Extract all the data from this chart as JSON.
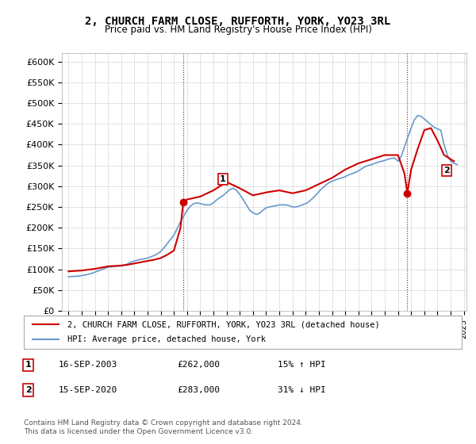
{
  "title": "2, CHURCH FARM CLOSE, RUFFORTH, YORK, YO23 3RL",
  "subtitle": "Price paid vs. HM Land Registry's House Price Index (HPI)",
  "ylabel_ticks": [
    "£0",
    "£50K",
    "£100K",
    "£150K",
    "£200K",
    "£250K",
    "£300K",
    "£350K",
    "£400K",
    "£450K",
    "£500K",
    "£550K",
    "£600K"
  ],
  "ylim": [
    0,
    620000
  ],
  "ytick_vals": [
    0,
    50000,
    100000,
    150000,
    200000,
    250000,
    300000,
    350000,
    400000,
    450000,
    500000,
    550000,
    600000
  ],
  "sale1_date_x": 2003.71,
  "sale1_price": 262000,
  "sale2_date_x": 2020.71,
  "sale2_price": 283000,
  "legend_line1": "2, CHURCH FARM CLOSE, RUFFORTH, YORK, YO23 3RL (detached house)",
  "legend_line2": "HPI: Average price, detached house, York",
  "table_row1": [
    "1",
    "16-SEP-2003",
    "£262,000",
    "15% ↑ HPI"
  ],
  "table_row2": [
    "2",
    "15-SEP-2020",
    "£283,000",
    "31% ↓ HPI"
  ],
  "footnote": "Contains HM Land Registry data © Crown copyright and database right 2024.\nThis data is licensed under the Open Government Licence v3.0.",
  "sale_color": "#cc0000",
  "hpi_color": "#6699cc",
  "vline_color": "#cc0000",
  "background_color": "#ffffff",
  "hpi_data": {
    "years": [
      1995,
      1995.25,
      1995.5,
      1995.75,
      1996,
      1996.25,
      1996.5,
      1996.75,
      1997,
      1997.25,
      1997.5,
      1997.75,
      1998,
      1998.25,
      1998.5,
      1998.75,
      1999,
      1999.25,
      1999.5,
      1999.75,
      2000,
      2000.25,
      2000.5,
      2000.75,
      2001,
      2001.25,
      2001.5,
      2001.75,
      2002,
      2002.25,
      2002.5,
      2002.75,
      2003,
      2003.25,
      2003.5,
      2003.75,
      2004,
      2004.25,
      2004.5,
      2004.75,
      2005,
      2005.25,
      2005.5,
      2005.75,
      2006,
      2006.25,
      2006.5,
      2006.75,
      2007,
      2007.25,
      2007.5,
      2007.75,
      2008,
      2008.25,
      2008.5,
      2008.75,
      2009,
      2009.25,
      2009.5,
      2009.75,
      2010,
      2010.25,
      2010.5,
      2010.75,
      2011,
      2011.25,
      2011.5,
      2011.75,
      2012,
      2012.25,
      2012.5,
      2012.75,
      2013,
      2013.25,
      2013.5,
      2013.75,
      2014,
      2014.25,
      2014.5,
      2014.75,
      2015,
      2015.25,
      2015.5,
      2015.75,
      2016,
      2016.25,
      2016.5,
      2016.75,
      2017,
      2017.25,
      2017.5,
      2017.75,
      2018,
      2018.25,
      2018.5,
      2018.75,
      2019,
      2019.25,
      2019.5,
      2019.75,
      2020,
      2020.25,
      2020.5,
      2020.75,
      2021,
      2021.25,
      2021.5,
      2021.75,
      2022,
      2022.25,
      2022.5,
      2022.75,
      2023,
      2023.25,
      2023.5,
      2023.75,
      2024,
      2024.25,
      2024.5
    ],
    "values": [
      82000,
      82500,
      83000,
      83500,
      85000,
      86000,
      88000,
      90000,
      93000,
      96000,
      99000,
      102000,
      105000,
      106000,
      107000,
      107500,
      108000,
      110000,
      113000,
      117000,
      120000,
      122000,
      124000,
      125000,
      127000,
      130000,
      133000,
      137000,
      143000,
      152000,
      162000,
      172000,
      182000,
      198000,
      215000,
      228000,
      242000,
      252000,
      258000,
      260000,
      258000,
      256000,
      255000,
      255000,
      260000,
      267000,
      273000,
      278000,
      285000,
      292000,
      295000,
      290000,
      280000,
      268000,
      255000,
      242000,
      236000,
      232000,
      235000,
      242000,
      248000,
      250000,
      252000,
      253000,
      255000,
      255000,
      255000,
      253000,
      250000,
      250000,
      252000,
      255000,
      258000,
      263000,
      270000,
      278000,
      287000,
      295000,
      302000,
      308000,
      312000,
      315000,
      318000,
      320000,
      323000,
      327000,
      330000,
      333000,
      337000,
      342000,
      347000,
      350000,
      352000,
      355000,
      358000,
      360000,
      362000,
      365000,
      367000,
      368000,
      360000,
      372000,
      395000,
      418000,
      440000,
      460000,
      470000,
      468000,
      462000,
      455000,
      448000,
      442000,
      438000,
      435000,
      400000,
      375000,
      360000,
      355000,
      352000
    ]
  },
  "sale_data": {
    "years": [
      1995,
      1995.5,
      1996,
      1996.5,
      1997,
      1997.5,
      1998,
      1998.5,
      1999,
      1999.5,
      2000,
      2000.5,
      2001,
      2001.5,
      2002,
      2002.5,
      2003,
      2003.5,
      2003.71,
      2003.71,
      2004,
      2005,
      2006,
      2007,
      2008,
      2009,
      2010,
      2011,
      2012,
      2013,
      2014,
      2015,
      2016,
      2017,
      2018,
      2019,
      2020,
      2020.5,
      2020.71,
      2020.71,
      2021,
      2021.5,
      2022,
      2022.5,
      2023,
      2023.5,
      2024,
      2024.25
    ],
    "values": [
      95000,
      96000,
      97000,
      99000,
      101000,
      104000,
      107000,
      108000,
      109000,
      111000,
      114000,
      117000,
      120000,
      123000,
      127000,
      135000,
      145000,
      200000,
      262000,
      262000,
      268000,
      275000,
      290000,
      310000,
      295000,
      278000,
      285000,
      290000,
      283000,
      290000,
      305000,
      320000,
      340000,
      355000,
      365000,
      375000,
      375000,
      330000,
      283000,
      283000,
      340000,
      390000,
      435000,
      440000,
      410000,
      375000,
      365000,
      360000
    ]
  },
  "xlim": [
    1994.5,
    2025.2
  ],
  "xtick_years": [
    1995,
    1996,
    1997,
    1998,
    1999,
    2000,
    2001,
    2002,
    2003,
    2004,
    2005,
    2006,
    2007,
    2008,
    2009,
    2010,
    2011,
    2012,
    2013,
    2014,
    2015,
    2016,
    2017,
    2018,
    2019,
    2020,
    2021,
    2022,
    2023,
    2024,
    2025
  ]
}
